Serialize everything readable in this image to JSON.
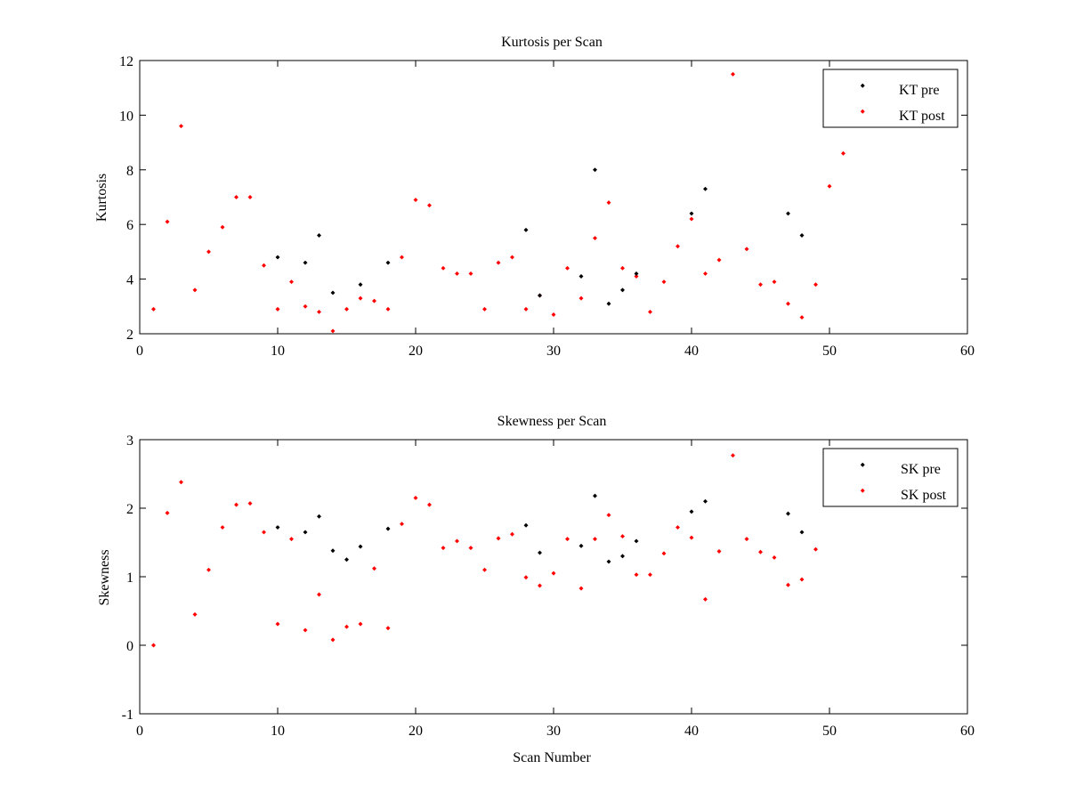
{
  "chart_data": [
    {
      "type": "scatter",
      "title": "Kurtosis per Scan",
      "xlabel": "",
      "ylabel": "Kurtosis",
      "xlim": [
        0,
        60
      ],
      "ylim": [
        2,
        12
      ],
      "xticks": [
        "0",
        "10",
        "20",
        "30",
        "40",
        "50",
        "60"
      ],
      "yticks": [
        "2",
        "4",
        "6",
        "8",
        "10",
        "12"
      ],
      "grid": false,
      "legend": "top-right",
      "series": [
        {
          "name": "KT pre",
          "color": "#000000",
          "points": [
            [
              10,
              4.8
            ],
            [
              12,
              4.6
            ],
            [
              13,
              5.6
            ],
            [
              14,
              3.5
            ],
            [
              16,
              3.8
            ],
            [
              18,
              4.6
            ],
            [
              28,
              5.8
            ],
            [
              29,
              3.4
            ],
            [
              32,
              4.1
            ],
            [
              33,
              8.0
            ],
            [
              34,
              3.1
            ],
            [
              35,
              3.6
            ],
            [
              36,
              4.2
            ],
            [
              40,
              6.4
            ],
            [
              41,
              7.3
            ],
            [
              47,
              6.4
            ],
            [
              48,
              5.6
            ]
          ]
        },
        {
          "name": "KT post",
          "color": "#ff0000",
          "points": [
            [
              1,
              2.9
            ],
            [
              2,
              6.1
            ],
            [
              3,
              9.6
            ],
            [
              4,
              3.6
            ],
            [
              5,
              5.0
            ],
            [
              6,
              5.9
            ],
            [
              7,
              7.0
            ],
            [
              8,
              7.0
            ],
            [
              9,
              4.5
            ],
            [
              10,
              2.9
            ],
            [
              11,
              3.9
            ],
            [
              12,
              3.0
            ],
            [
              13,
              2.8
            ],
            [
              14,
              2.1
            ],
            [
              15,
              2.9
            ],
            [
              16,
              3.3
            ],
            [
              17,
              3.2
            ],
            [
              18,
              2.9
            ],
            [
              19,
              4.8
            ],
            [
              20,
              6.9
            ],
            [
              21,
              6.7
            ],
            [
              22,
              4.4
            ],
            [
              23,
              4.2
            ],
            [
              24,
              4.2
            ],
            [
              25,
              2.9
            ],
            [
              26,
              4.6
            ],
            [
              27,
              4.8
            ],
            [
              28,
              2.9
            ],
            [
              29,
              3.4
            ],
            [
              30,
              2.7
            ],
            [
              31,
              4.4
            ],
            [
              32,
              3.3
            ],
            [
              33,
              5.5
            ],
            [
              34,
              6.8
            ],
            [
              35,
              4.4
            ],
            [
              36,
              4.1
            ],
            [
              37,
              2.8
            ],
            [
              38,
              3.9
            ],
            [
              39,
              5.2
            ],
            [
              40,
              6.2
            ],
            [
              41,
              4.2
            ],
            [
              42,
              4.7
            ],
            [
              43,
              11.5
            ],
            [
              44,
              5.1
            ],
            [
              45,
              3.8
            ],
            [
              46,
              3.9
            ],
            [
              47,
              3.1
            ],
            [
              48,
              2.6
            ],
            [
              49,
              3.8
            ],
            [
              50,
              7.4
            ],
            [
              51,
              8.6
            ]
          ]
        }
      ]
    },
    {
      "type": "scatter",
      "title": "Skewness per Scan",
      "xlabel": "Scan Number",
      "ylabel": "Skewness",
      "xlim": [
        0,
        60
      ],
      "ylim": [
        -1,
        3
      ],
      "xticks": [
        "0",
        "10",
        "20",
        "30",
        "40",
        "50",
        "60"
      ],
      "yticks": [
        "-1",
        "0",
        "1",
        "2",
        "3"
      ],
      "grid": false,
      "legend": "top-right",
      "series": [
        {
          "name": "SK pre",
          "color": "#000000",
          "points": [
            [
              10,
              1.72
            ],
            [
              12,
              1.65
            ],
            [
              13,
              1.88
            ],
            [
              14,
              1.38
            ],
            [
              15,
              1.25
            ],
            [
              16,
              1.44
            ],
            [
              18,
              1.7
            ],
            [
              28,
              1.75
            ],
            [
              29,
              1.35
            ],
            [
              32,
              1.45
            ],
            [
              33,
              2.18
            ],
            [
              34,
              1.22
            ],
            [
              35,
              1.3
            ],
            [
              36,
              1.52
            ],
            [
              40,
              1.95
            ],
            [
              41,
              2.1
            ],
            [
              47,
              1.92
            ],
            [
              48,
              1.65
            ]
          ]
        },
        {
          "name": "SK post",
          "color": "#ff0000",
          "points": [
            [
              1,
              0.0
            ],
            [
              2,
              1.93
            ],
            [
              3,
              2.38
            ],
            [
              4,
              0.45
            ],
            [
              5,
              1.1
            ],
            [
              6,
              1.72
            ],
            [
              7,
              2.05
            ],
            [
              8,
              2.07
            ],
            [
              9,
              1.65
            ],
            [
              10,
              0.31
            ],
            [
              11,
              1.55
            ],
            [
              12,
              0.22
            ],
            [
              13,
              0.74
            ],
            [
              14,
              0.08
            ],
            [
              15,
              0.27
            ],
            [
              16,
              0.31
            ],
            [
              17,
              1.12
            ],
            [
              18,
              0.25
            ],
            [
              19,
              1.77
            ],
            [
              20,
              2.15
            ],
            [
              21,
              2.05
            ],
            [
              22,
              1.42
            ],
            [
              23,
              1.52
            ],
            [
              24,
              1.42
            ],
            [
              25,
              1.1
            ],
            [
              26,
              1.56
            ],
            [
              27,
              1.62
            ],
            [
              28,
              0.99
            ],
            [
              29,
              0.87
            ],
            [
              30,
              1.05
            ],
            [
              31,
              1.55
            ],
            [
              32,
              0.83
            ],
            [
              33,
              1.55
            ],
            [
              34,
              1.9
            ],
            [
              35,
              1.59
            ],
            [
              36,
              1.03
            ],
            [
              37,
              1.03
            ],
            [
              38,
              1.34
            ],
            [
              39,
              1.72
            ],
            [
              40,
              1.57
            ],
            [
              41,
              0.67
            ],
            [
              42,
              1.37
            ],
            [
              43,
              2.77
            ],
            [
              44,
              1.55
            ],
            [
              45,
              1.36
            ],
            [
              46,
              1.28
            ],
            [
              47,
              0.88
            ],
            [
              48,
              0.96
            ],
            [
              49,
              1.4
            ]
          ]
        }
      ]
    }
  ]
}
